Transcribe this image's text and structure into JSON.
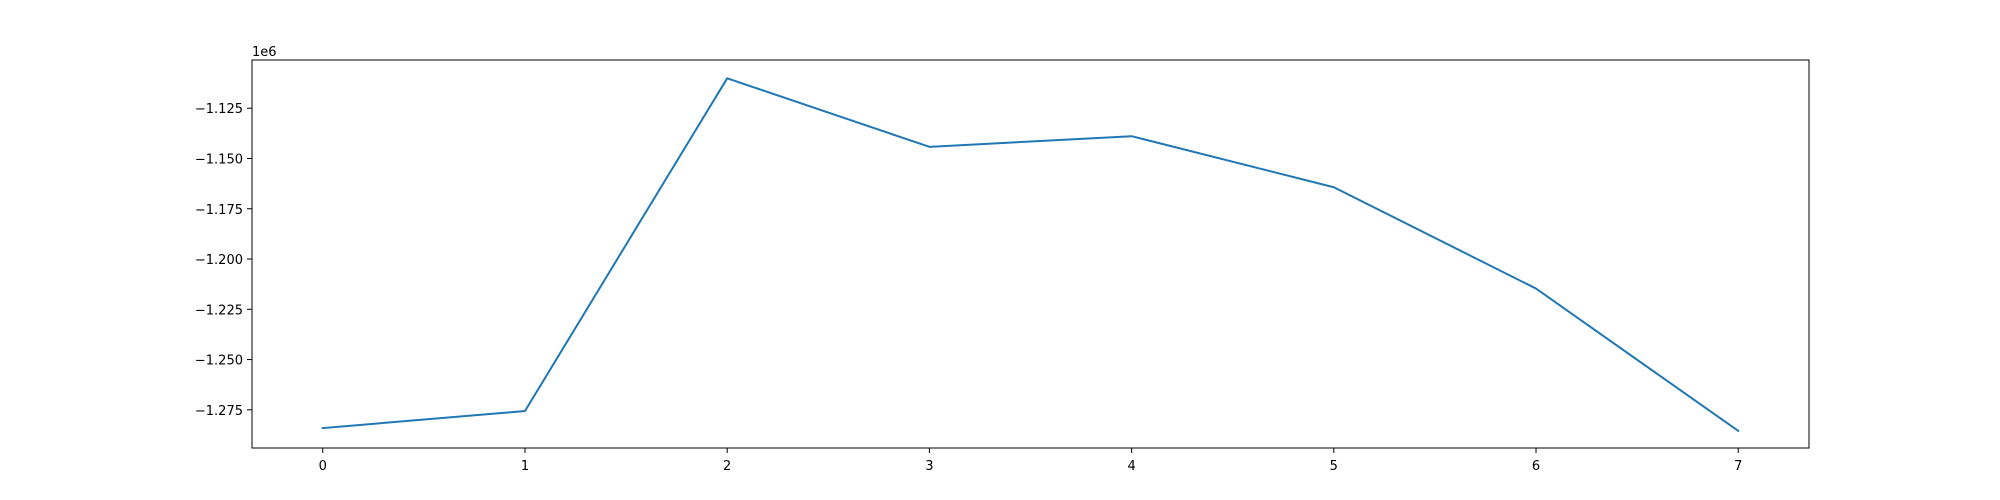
{
  "chart_data": {
    "type": "line",
    "title": "",
    "xlabel": "",
    "ylabel": "",
    "x": [
      0,
      1,
      2,
      3,
      4,
      5,
      6,
      7
    ],
    "series": [
      {
        "color": "#1f77b4",
        "values": [
          -1284100,
          -1275600,
          -1110100,
          -1144200,
          -1138900,
          -1164300,
          -1214700,
          -1285500
        ]
      }
    ],
    "xlim": [
      -0.35,
      7.35
    ],
    "ylim": [
      -1294000,
      -1101000
    ],
    "xticks": [
      0,
      1,
      2,
      3,
      4,
      5,
      6,
      7
    ],
    "xtick_labels": [
      "0",
      "1",
      "2",
      "3",
      "4",
      "5",
      "6",
      "7"
    ],
    "yticks": [
      -1275000,
      -1250000,
      -1225000,
      -1200000,
      -1175000,
      -1150000,
      -1125000
    ],
    "ytick_labels": [
      "−1.275",
      "−1.250",
      "−1.225",
      "−1.200",
      "−1.175",
      "−1.150",
      "−1.125"
    ],
    "y_offset_label": "1e6",
    "grid": false,
    "legend": "none"
  }
}
